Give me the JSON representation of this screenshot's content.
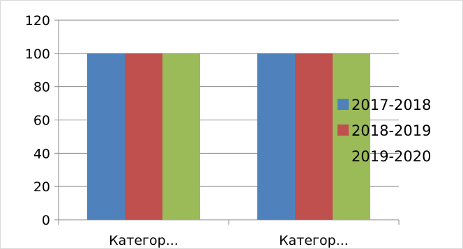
{
  "chart_data": {
    "type": "bar",
    "categories": [
      "Категор...",
      "Категор..."
    ],
    "series": [
      {
        "name": "2017-2018",
        "color": "#4f81bd",
        "values": [
          100,
          100
        ]
      },
      {
        "name": "2018-2019",
        "color": "#c0504d",
        "values": [
          100,
          100
        ]
      },
      {
        "name": "2019-2020",
        "color": "#9bbb59",
        "values": [
          100,
          100
        ]
      }
    ],
    "yticks": [
      "0",
      "20",
      "40",
      "60",
      "80",
      "100",
      "120"
    ],
    "ylim": [
      0,
      120
    ],
    "grid": true,
    "legend": "right",
    "title": "",
    "xlabel": "",
    "ylabel": ""
  }
}
